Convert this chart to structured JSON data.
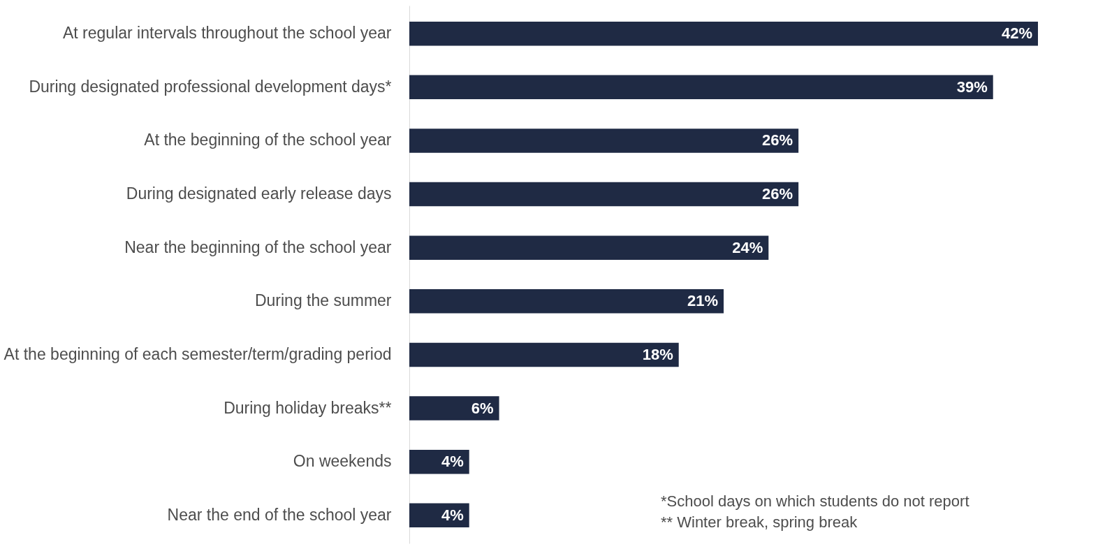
{
  "chart_data": {
    "type": "bar",
    "orientation": "horizontal",
    "grid": false,
    "tick_labels": "y",
    "categories": [
      "At regular intervals throughout the school year",
      "During designated professional development days*",
      "At the beginning of the school year",
      "During designated early release days",
      "Near the beginning of the school year",
      "During the summer",
      "At the beginning of each semester/term/grading period",
      "During holiday breaks**",
      "On weekends",
      "Near the end of the school year"
    ],
    "values": [
      42,
      39,
      26,
      26,
      24,
      21,
      18,
      6,
      4,
      4
    ],
    "value_labels": [
      "42%",
      "39%",
      "26%",
      "26%",
      "24%",
      "21%",
      "18%",
      "6%",
      "4%",
      "4%"
    ],
    "color": "#1f2a44",
    "annotations": [
      "*School days on which students do not report",
      "** Winter break, spring break"
    ]
  }
}
